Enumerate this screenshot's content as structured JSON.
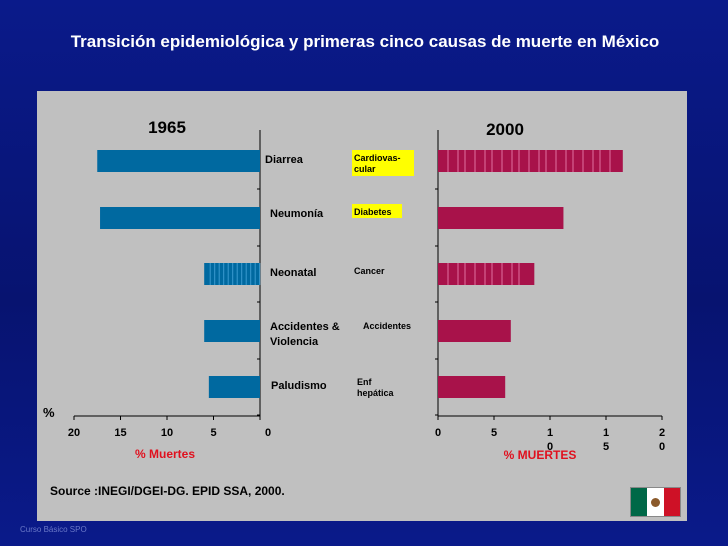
{
  "title": "Transición epidemiológica y primeras cinco causas de muerte en México",
  "source": "Source :INEGI/DGEI-DG. EPID SSA, 2000.",
  "footer": "Curso Básico SPO",
  "colors": {
    "bar1965": "#0069a0",
    "bar2000": "#a8124a",
    "highlight": "#ffff00",
    "xlabel": "#e0101e"
  },
  "chart_data": [
    {
      "type": "bar",
      "orientation": "horizontal",
      "title": "1965",
      "categories": [
        "Diarrea",
        "Neumonía",
        "Neonatal",
        "Accidentes & Violencia",
        "Paludismo"
      ],
      "values": [
        17.5,
        17.2,
        6.0,
        6.0,
        5.5
      ],
      "xlabel": "% Muertes",
      "ylabel": "%",
      "xlim": [
        0,
        20
      ],
      "x_ticks": [
        "20",
        "15",
        "10",
        "5",
        "0"
      ],
      "reversed": true
    },
    {
      "type": "bar",
      "orientation": "horizontal",
      "title": "2000",
      "categories": [
        "Cardiovas-cular",
        "Diabetes",
        "Cancer",
        "Accidentes",
        "Enf hepática"
      ],
      "values": [
        16.5,
        11.2,
        8.6,
        6.5,
        6.0
      ],
      "xlabel": "% MUERTES",
      "xlim": [
        0,
        20
      ],
      "x_ticks": [
        "0",
        "5",
        "10",
        "15",
        "20"
      ],
      "highlighted": [
        "Cardiovas-cular",
        "Diabetes"
      ]
    }
  ]
}
